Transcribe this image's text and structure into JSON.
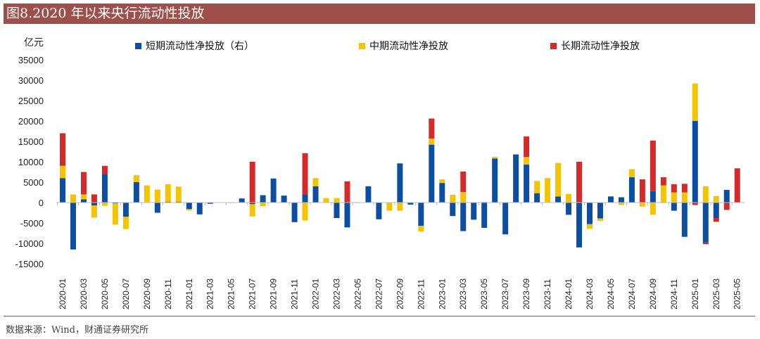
{
  "title": "图8.2020 年以来央行流动性投放",
  "source": "数据来源：Wind，财通证券研究所",
  "chart_data": {
    "type": "bar",
    "stacked": true,
    "ylabel": "亿元",
    "ylim": [
      -15000,
      35000
    ],
    "yticks": [
      35000,
      30000,
      25000,
      20000,
      15000,
      10000,
      5000,
      0,
      -5000,
      -10000,
      -15000
    ],
    "grid": false,
    "legend_position": "top",
    "categories": [
      "2020-01",
      "2020-02",
      "2020-03",
      "2020-04",
      "2020-05",
      "2020-06",
      "2020-07",
      "2020-08",
      "2020-09",
      "2020-10",
      "2020-11",
      "2020-12",
      "2021-01",
      "2021-02",
      "2021-03",
      "2021-04",
      "2021-05",
      "2021-06",
      "2021-07",
      "2021-08",
      "2021-09",
      "2021-10",
      "2021-11",
      "2021-12",
      "2022-01",
      "2022-02",
      "2022-03",
      "2022-04",
      "2022-05",
      "2022-06",
      "2022-07",
      "2022-08",
      "2022-09",
      "2022-10",
      "2022-11",
      "2022-12",
      "2023-01",
      "2023-02",
      "2023-03",
      "2023-04",
      "2023-05",
      "2023-06",
      "2023-07",
      "2023-08",
      "2023-09",
      "2023-10",
      "2023-11",
      "2023-12",
      "2024-01",
      "2024-02",
      "2024-03",
      "2024-04",
      "2024-05",
      "2024-06",
      "2024-07",
      "2024-08",
      "2024-09",
      "2024-10",
      "2024-11",
      "2024-12",
      "2025-01",
      "2025-02",
      "2025-03",
      "2025-04",
      "2025-05"
    ],
    "series": [
      {
        "name": "短期流动性净投放（右）",
        "color": "#0b4ea2",
        "values": [
          6000,
          -11500,
          800,
          -700,
          7000,
          -200,
          -3500,
          5000,
          0,
          -2500,
          200,
          200,
          -1600,
          -2900,
          -300,
          0,
          -100,
          1000,
          -400,
          1800,
          5900,
          1700,
          -4800,
          2000,
          4000,
          0,
          -3800,
          -6100,
          -100,
          4000,
          -4100,
          0,
          9600,
          -500,
          -5700,
          14200,
          4800,
          -3300,
          -7000,
          -4200,
          -6200,
          10800,
          -7800,
          11800,
          9300,
          2300,
          0,
          1500,
          -3000,
          -11000,
          -5300,
          -3900,
          1500,
          1300,
          6200,
          100,
          2800,
          -100,
          -2000,
          -8400,
          20000,
          -9800,
          -3800,
          3100,
          0
        ]
      },
      {
        "name": "中期流动性净投放",
        "color": "#f5c400",
        "values": [
          3000,
          2000,
          1200,
          -3000,
          -800,
          -5200,
          -3000,
          1700,
          4200,
          3200,
          4300,
          3700,
          -300,
          0,
          0,
          0,
          0,
          0,
          -3000,
          -900,
          0,
          0,
          0,
          -4400,
          2000,
          1100,
          1100,
          0,
          0,
          0,
          0,
          -2000,
          -2000,
          0,
          -1400,
          1500,
          900,
          1900,
          2600,
          0,
          200,
          400,
          0,
          0,
          1900,
          3000,
          6000,
          8200,
          2100,
          0,
          -1100,
          -600,
          0,
          -600,
          2000,
          -1000,
          -3000,
          4200,
          2500,
          2500,
          9200,
          4000,
          1600,
          0,
          0
        ]
      },
      {
        "name": "长期流动性净投放",
        "color": "#d42a2a",
        "values": [
          8000,
          0,
          5500,
          2000,
          2000,
          0,
          0,
          0,
          0,
          0,
          0,
          0,
          0,
          0,
          0,
          0,
          0,
          0,
          10000,
          0,
          0,
          0,
          0,
          10100,
          0,
          0,
          0,
          5200,
          0,
          0,
          0,
          0,
          0,
          0,
          0,
          4900,
          0,
          0,
          5000,
          0,
          0,
          0,
          0,
          0,
          5000,
          0,
          0,
          0,
          0,
          10000,
          0,
          0,
          0,
          0,
          0,
          5600,
          12400,
          2000,
          2000,
          2100,
          -600,
          -400,
          -900,
          -1800,
          8400
        ]
      }
    ]
  }
}
